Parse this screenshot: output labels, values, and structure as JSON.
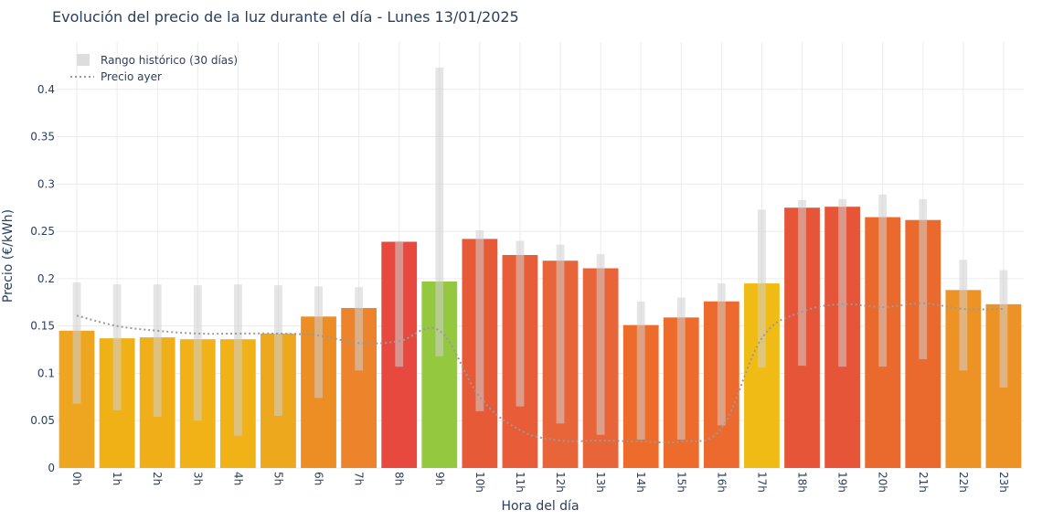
{
  "chart_data": {
    "type": "bar",
    "title": "Evolución del precio de la luz durante el día - Lunes 13/01/2025",
    "xlabel": "Hora del día",
    "ylabel": "Precio (€/kWh)",
    "ylim": [
      0,
      0.45
    ],
    "yticks": [
      0,
      0.05,
      0.1,
      0.15,
      0.2,
      0.25,
      0.3,
      0.35,
      0.4
    ],
    "ytick_labels": [
      "0",
      "0.05",
      "0.1",
      "0.15",
      "0.2",
      "0.25",
      "0.3",
      "0.35",
      "0.4"
    ],
    "grid": true,
    "legend_position": "top-left",
    "categories": [
      "0h",
      "1h",
      "2h",
      "3h",
      "4h",
      "5h",
      "6h",
      "7h",
      "8h",
      "9h",
      "10h",
      "11h",
      "12h",
      "13h",
      "14h",
      "15h",
      "16h",
      "17h",
      "18h",
      "19h",
      "20h",
      "21h",
      "22h",
      "23h"
    ],
    "series": [
      {
        "type": "bar",
        "values": [
          0.145,
          0.137,
          0.138,
          0.136,
          0.136,
          0.142,
          0.16,
          0.169,
          0.239,
          0.197,
          0.242,
          0.225,
          0.219,
          0.211,
          0.151,
          0.159,
          0.176,
          0.195,
          0.275,
          0.276,
          0.265,
          0.262,
          0.188,
          0.173
        ],
        "colors": [
          "#eea51f",
          "#f0b117",
          "#f0af18",
          "#f0b216",
          "#f0b216",
          "#eea81d",
          "#ed8e25",
          "#ed832a",
          "#e8493e",
          "#93c83f",
          "#e75a38",
          "#e85d37",
          "#e8653a",
          "#e8653a",
          "#ed6b2b",
          "#ed6b2b",
          "#ec6a2e",
          "#f0bb14",
          "#e75538",
          "#e75538",
          "#ea6a2e",
          "#ea6a2e",
          "#ed9224",
          "#ed9224"
        ]
      },
      {
        "name": "Rango histórico (30 días)",
        "type": "range",
        "color": "#dddddd",
        "low": [
          0.068,
          0.061,
          0.054,
          0.05,
          0.034,
          0.055,
          0.074,
          0.103,
          0.107,
          0.118,
          0.06,
          0.065,
          0.047,
          0.035,
          0.03,
          0.03,
          0.045,
          0.106,
          0.108,
          0.107,
          0.107,
          0.115,
          0.103,
          0.085
        ],
        "high": [
          0.196,
          0.194,
          0.194,
          0.193,
          0.194,
          0.193,
          0.192,
          0.191,
          0.24,
          0.423,
          0.251,
          0.24,
          0.236,
          0.226,
          0.176,
          0.18,
          0.195,
          0.273,
          0.283,
          0.284,
          0.289,
          0.284,
          0.22,
          0.209
        ]
      },
      {
        "name": "Precio ayer",
        "type": "line",
        "style": "dotted",
        "color": "#9a9a9a",
        "values": [
          0.161,
          0.15,
          0.145,
          0.142,
          0.142,
          0.142,
          0.14,
          0.132,
          0.134,
          0.145,
          0.075,
          0.04,
          0.029,
          0.029,
          0.028,
          0.028,
          0.042,
          0.137,
          0.165,
          0.173,
          0.17,
          0.174,
          0.168,
          0.168
        ]
      }
    ]
  }
}
